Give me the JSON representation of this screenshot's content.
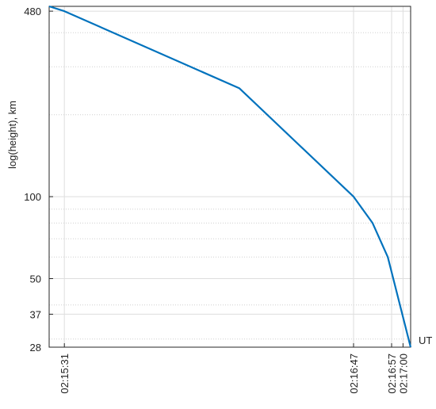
{
  "chart_data": {
    "type": "line",
    "title": "",
    "xlabel": "UT",
    "ylabel": "log(height), km",
    "y_scale": "log",
    "grid": true,
    "x_ticks": [
      {
        "t": 931,
        "label": "02:15:31"
      },
      {
        "t": 1007,
        "label": "02:16:47"
      },
      {
        "t": 1017,
        "label": "02:16:57"
      },
      {
        "t": 1020,
        "label": "02:17:00"
      }
    ],
    "y_ticks": [
      28,
      37,
      50,
      100,
      480
    ],
    "xlim": [
      927,
      1022
    ],
    "ylim": [
      28,
      500
    ],
    "series": [
      {
        "color": "#0072bd",
        "points": [
          {
            "t": 927,
            "h": 500
          },
          {
            "t": 931,
            "h": 480
          },
          {
            "t": 977,
            "h": 250
          },
          {
            "t": 1007,
            "h": 100
          },
          {
            "t": 1012,
            "h": 80
          },
          {
            "t": 1016,
            "h": 60
          },
          {
            "t": 1022,
            "h": 28
          }
        ]
      }
    ]
  }
}
